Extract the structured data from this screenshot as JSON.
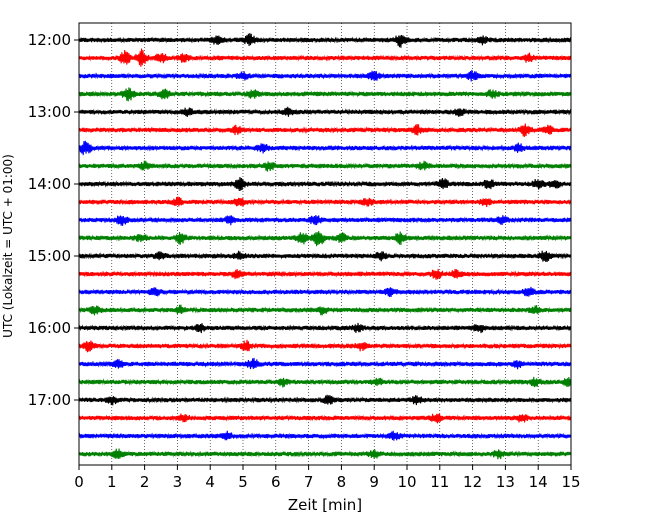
{
  "chart_data": {
    "type": "line",
    "title": "",
    "xlabel": "Zeit  [min]",
    "ylabel": "UTC (Lokalzeit = UTC + 01:00)",
    "xlim": [
      0,
      15
    ],
    "x_ticks": [
      "0",
      "1",
      "2",
      "3",
      "4",
      "5",
      "6",
      "7",
      "8",
      "9",
      "10",
      "11",
      "12",
      "13",
      "14",
      "15"
    ],
    "y_ticks": [
      "12:00",
      "13:00",
      "14:00",
      "15:00",
      "16:00",
      "17:00"
    ],
    "grid": "vertical-dotted",
    "trace_minutes_per_line": 15,
    "color_cycle": [
      "#000000",
      "#ff0000",
      "#0000ff",
      "#008000"
    ],
    "traces": [
      {
        "start": "12:00",
        "color": "#000000",
        "events": [
          [
            4.2,
            0.5
          ],
          [
            5.2,
            0.6
          ],
          [
            9.8,
            0.7
          ],
          [
            12.3,
            0.4
          ]
        ]
      },
      {
        "start": "12:15",
        "color": "#ff0000",
        "events": [
          [
            1.4,
            0.8
          ],
          [
            1.9,
            1.0
          ],
          [
            2.5,
            0.5
          ],
          [
            3.2,
            0.4
          ],
          [
            13.7,
            0.4
          ]
        ]
      },
      {
        "start": "12:30",
        "color": "#0000ff",
        "events": [
          [
            5.0,
            0.4
          ],
          [
            9.0,
            0.5
          ],
          [
            12.0,
            0.5
          ]
        ]
      },
      {
        "start": "12:45",
        "color": "#008000",
        "events": [
          [
            1.5,
            0.7
          ],
          [
            2.6,
            0.5
          ],
          [
            5.3,
            0.4
          ],
          [
            12.6,
            0.4
          ]
        ]
      },
      {
        "start": "13:00",
        "color": "#000000",
        "events": [
          [
            3.3,
            0.4
          ],
          [
            6.4,
            0.4
          ],
          [
            11.6,
            0.4
          ]
        ]
      },
      {
        "start": "13:15",
        "color": "#ff0000",
        "events": [
          [
            4.8,
            0.4
          ],
          [
            10.3,
            0.5
          ],
          [
            13.6,
            0.6
          ],
          [
            14.3,
            0.4
          ]
        ]
      },
      {
        "start": "13:30",
        "color": "#0000ff",
        "events": [
          [
            0.2,
            0.8
          ],
          [
            5.6,
            0.5
          ],
          [
            13.4,
            0.4
          ]
        ]
      },
      {
        "start": "13:45",
        "color": "#008000",
        "events": [
          [
            2.0,
            0.4
          ],
          [
            5.8,
            0.5
          ],
          [
            10.5,
            0.4
          ]
        ]
      },
      {
        "start": "14:00",
        "color": "#000000",
        "events": [
          [
            4.9,
            0.6
          ],
          [
            11.1,
            0.5
          ],
          [
            12.5,
            0.5
          ],
          [
            14.0,
            0.5
          ],
          [
            14.5,
            0.5
          ]
        ]
      },
      {
        "start": "14:15",
        "color": "#ff0000",
        "events": [
          [
            3.0,
            0.4
          ],
          [
            4.9,
            0.5
          ],
          [
            8.8,
            0.4
          ],
          [
            12.4,
            0.4
          ]
        ]
      },
      {
        "start": "14:30",
        "color": "#0000ff",
        "events": [
          [
            1.3,
            0.5
          ],
          [
            4.6,
            0.4
          ],
          [
            7.2,
            0.5
          ],
          [
            12.9,
            0.4
          ]
        ]
      },
      {
        "start": "14:45",
        "color": "#008000",
        "events": [
          [
            1.9,
            0.4
          ],
          [
            3.1,
            0.6
          ],
          [
            6.8,
            0.6
          ],
          [
            7.3,
            0.9
          ],
          [
            8.0,
            0.5
          ],
          [
            9.8,
            0.6
          ]
        ]
      },
      {
        "start": "15:00",
        "color": "#000000",
        "events": [
          [
            2.5,
            0.4
          ],
          [
            4.9,
            0.4
          ],
          [
            9.2,
            0.4
          ],
          [
            14.2,
            0.6
          ]
        ]
      },
      {
        "start": "15:15",
        "color": "#ff0000",
        "events": [
          [
            4.8,
            0.4
          ],
          [
            10.9,
            0.5
          ],
          [
            11.5,
            0.4
          ]
        ]
      },
      {
        "start": "15:30",
        "color": "#0000ff",
        "events": [
          [
            2.3,
            0.4
          ],
          [
            9.5,
            0.4
          ],
          [
            13.7,
            0.5
          ]
        ]
      },
      {
        "start": "15:45",
        "color": "#008000",
        "events": [
          [
            0.5,
            0.4
          ],
          [
            3.1,
            0.4
          ],
          [
            7.4,
            0.4
          ],
          [
            13.9,
            0.4
          ]
        ]
      },
      {
        "start": "16:00",
        "color": "#000000",
        "events": [
          [
            3.7,
            0.4
          ],
          [
            8.5,
            0.4
          ],
          [
            12.2,
            0.4
          ]
        ]
      },
      {
        "start": "16:15",
        "color": "#ff0000",
        "events": [
          [
            0.3,
            0.6
          ],
          [
            5.1,
            0.5
          ],
          [
            8.6,
            0.4
          ]
        ]
      },
      {
        "start": "16:30",
        "color": "#0000ff",
        "events": [
          [
            1.2,
            0.4
          ],
          [
            5.3,
            0.6
          ],
          [
            13.4,
            0.4
          ]
        ]
      },
      {
        "start": "16:45",
        "color": "#008000",
        "events": [
          [
            6.2,
            0.4
          ],
          [
            9.1,
            0.4
          ],
          [
            13.9,
            0.4
          ],
          [
            14.9,
            0.4
          ]
        ]
      },
      {
        "start": "17:00",
        "color": "#000000",
        "events": [
          [
            1.0,
            0.4
          ],
          [
            7.6,
            0.4
          ],
          [
            10.3,
            0.4
          ]
        ]
      },
      {
        "start": "17:15",
        "color": "#ff0000",
        "events": [
          [
            3.2,
            0.4
          ],
          [
            10.9,
            0.5
          ],
          [
            13.5,
            0.4
          ]
        ]
      },
      {
        "start": "17:30",
        "color": "#0000ff",
        "events": [
          [
            4.5,
            0.4
          ],
          [
            9.6,
            0.4
          ]
        ]
      },
      {
        "start": "17:45",
        "color": "#008000",
        "events": [
          [
            1.2,
            0.5
          ],
          [
            9.0,
            0.4
          ],
          [
            12.8,
            0.4
          ]
        ]
      }
    ]
  }
}
